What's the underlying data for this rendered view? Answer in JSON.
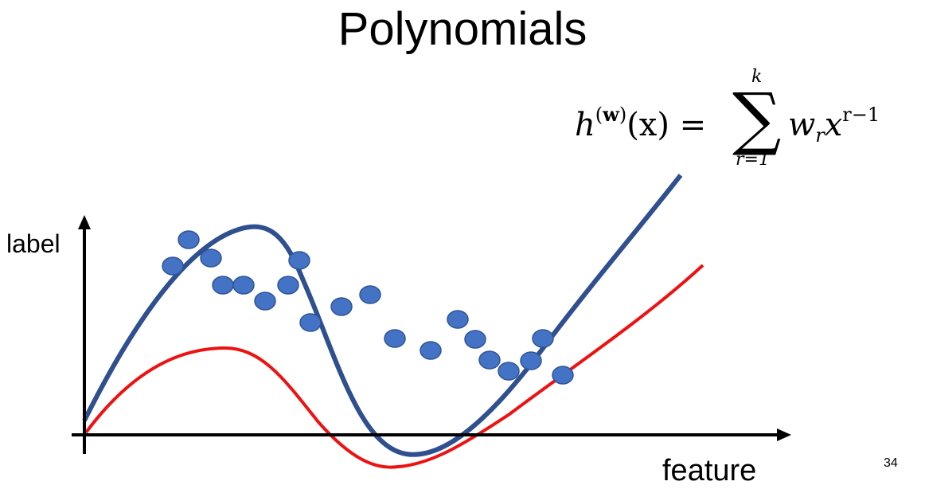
{
  "title": "Polynomials",
  "formula": {
    "h": "h",
    "w_sup_open": "(",
    "w_sup": "w",
    "w_sup_close": ")",
    "arg": "(x) =",
    "sum_upper": "k",
    "sum_lower": "r=1",
    "sum_symbol": "∑",
    "term_w": "w",
    "term_w_sub": "r",
    "term_x": "x",
    "term_x_sup": "r−1"
  },
  "axes": {
    "ylabel": "label",
    "xlabel": "feature"
  },
  "page_number": "34",
  "colors": {
    "blue_curve": "#2f4f8e",
    "red_curve": "#ee1111",
    "points": "#4472c4",
    "point_stroke": "#2f5597",
    "axis": "#000000"
  }
}
